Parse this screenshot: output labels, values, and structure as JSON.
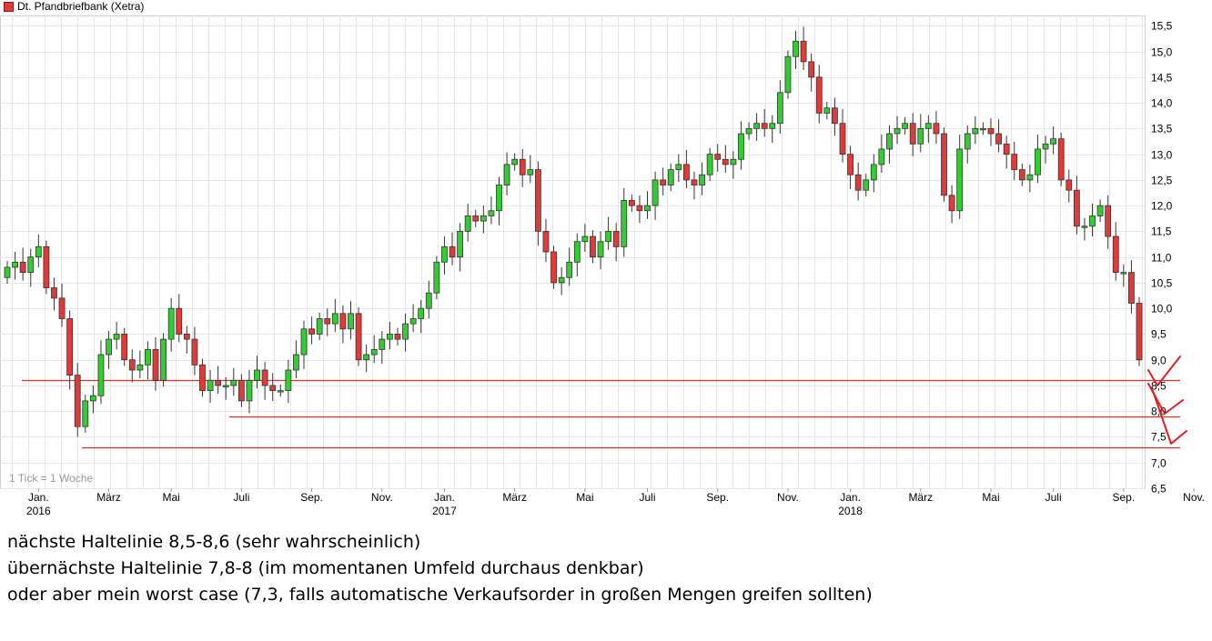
{
  "legend": {
    "label": "Dt. Pfandbriefbank (Xetra)",
    "color": "#e13a3a"
  },
  "tick_note": "1 Tick = 1 Woche",
  "notes": [
    "nächste Haltelinie 8,5-8,6 (sehr wahrscheinlich)",
    "übernächste Haltelinie 7,8-8 (im momentanen Umfeld durchaus denkbar)",
    "oder aber mein worst case (7,3, falls automatische Verkaufsorder in großen Mengen greifen sollten)"
  ],
  "chart_data": {
    "type": "candlestick",
    "title": "Dt. Pfandbriefbank (Xetra)",
    "interval": "weekly",
    "ylim": [
      6.5,
      15.7
    ],
    "y_ticks": [
      "6,5",
      "7,0",
      "7,5",
      "8,0",
      "8,5",
      "9,0",
      "9,5",
      "10,0",
      "10,5",
      "11,0",
      "11,5",
      "12,0",
      "12,5",
      "13,0",
      "13,5",
      "14,0",
      "14,5",
      "15,0",
      "15,5"
    ],
    "x_ticks": [
      {
        "label": "Jan.",
        "year": "2016"
      },
      {
        "label": "März",
        "year": ""
      },
      {
        "label": "Mai",
        "year": ""
      },
      {
        "label": "Juli",
        "year": ""
      },
      {
        "label": "Sep.",
        "year": ""
      },
      {
        "label": "Nov.",
        "year": ""
      },
      {
        "label": "Jan.",
        "year": "2017"
      },
      {
        "label": "März",
        "year": ""
      },
      {
        "label": "Mai",
        "year": ""
      },
      {
        "label": "Juli",
        "year": ""
      },
      {
        "label": "Sep.",
        "year": ""
      },
      {
        "label": "Nov.",
        "year": ""
      },
      {
        "label": "Jan.",
        "year": "2018"
      },
      {
        "label": "März",
        "year": ""
      },
      {
        "label": "Mai",
        "year": ""
      },
      {
        "label": "Juli",
        "year": ""
      },
      {
        "label": "Sep.",
        "year": ""
      },
      {
        "label": "Nov.",
        "year": ""
      }
    ],
    "grid": true,
    "support_lines": [
      8.6,
      7.9,
      7.3
    ],
    "colors": {
      "up": "#33cc33",
      "down": "#e13a3a",
      "support": "#d93030",
      "grid": "#e6e6e6"
    },
    "closes": [
      10.8,
      10.9,
      10.7,
      11.0,
      11.2,
      10.4,
      10.2,
      9.8,
      8.7,
      7.7,
      8.2,
      8.3,
      9.1,
      9.4,
      9.5,
      9.0,
      8.8,
      8.9,
      9.2,
      8.6,
      9.4,
      10.0,
      9.5,
      9.4,
      8.9,
      8.4,
      8.6,
      8.5,
      8.5,
      8.6,
      8.2,
      8.6,
      8.8,
      8.5,
      8.4,
      8.4,
      8.8,
      9.1,
      9.6,
      9.5,
      9.8,
      9.7,
      9.9,
      9.6,
      9.9,
      9.0,
      9.1,
      9.2,
      9.4,
      9.5,
      9.4,
      9.7,
      9.8,
      10.0,
      10.3,
      10.9,
      11.2,
      11.0,
      11.5,
      11.8,
      11.7,
      11.8,
      11.9,
      12.4,
      12.8,
      12.9,
      12.6,
      12.7,
      11.5,
      11.1,
      10.5,
      10.6,
      10.9,
      11.3,
      11.4,
      11.0,
      11.3,
      11.5,
      11.2,
      12.1,
      12.0,
      11.9,
      12.0,
      12.5,
      12.4,
      12.7,
      12.8,
      12.5,
      12.4,
      12.6,
      13.0,
      12.9,
      12.8,
      12.9,
      13.4,
      13.5,
      13.6,
      13.5,
      13.6,
      14.2,
      14.9,
      15.2,
      14.8,
      14.5,
      13.8,
      13.9,
      13.6,
      13.0,
      12.6,
      12.3,
      12.5,
      12.8,
      13.1,
      13.4,
      13.5,
      13.6,
      13.2,
      13.5,
      13.6,
      13.4,
      12.2,
      11.9,
      13.1,
      13.4,
      13.5,
      13.5,
      13.4,
      13.2,
      13.0,
      12.7,
      12.5,
      12.6,
      13.1,
      13.2,
      13.3,
      12.5,
      12.3,
      11.6,
      11.6,
      11.8,
      12.0,
      11.4,
      10.7,
      10.7,
      10.1,
      9.0
    ]
  }
}
